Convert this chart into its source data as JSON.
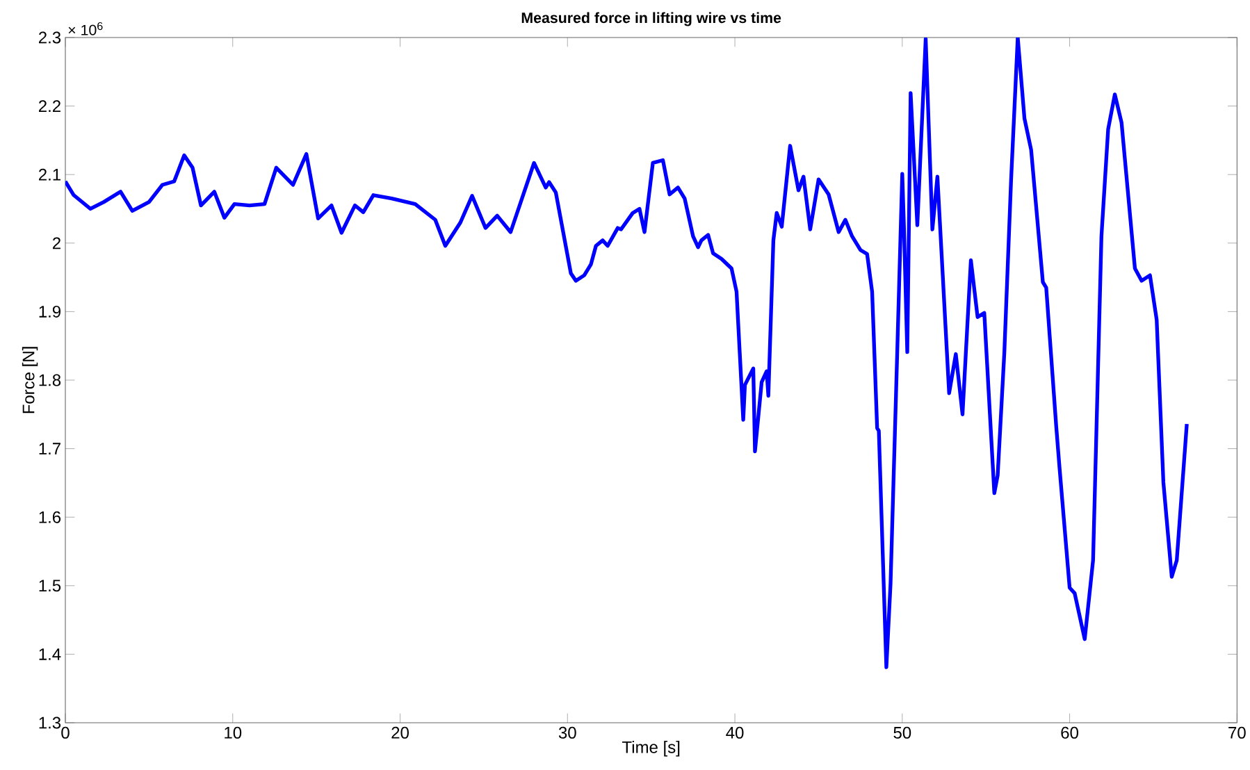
{
  "chart_data": {
    "type": "line",
    "title": "Measured force in lifting wire vs time",
    "xlabel": "Time [s]",
    "ylabel": "Force [N]",
    "annotations": [
      "× 10$^{6}$"
    ],
    "xlim": [
      0,
      70
    ],
    "ylim": [
      1.3,
      2.3
    ],
    "xticks": [
      0,
      10,
      20,
      30,
      40,
      50,
      60,
      70
    ],
    "yticks": [
      1.3,
      1.4,
      1.5,
      1.6,
      1.7,
      1.8,
      1.9,
      2,
      2.1,
      2.2,
      2.3
    ],
    "color": "#0000ff",
    "x": [
      0,
      0.5,
      1.5,
      2.3,
      3.3,
      4.0,
      5.0,
      5.8,
      6.5,
      7.1,
      7.6,
      8.1,
      8.9,
      9.5,
      10.1,
      11.0,
      11.9,
      12.6,
      13.6,
      14.4,
      15.1,
      15.9,
      16.5,
      17.3,
      17.8,
      18.4,
      19.5,
      20.9,
      22.1,
      22.7,
      23.6,
      24.3,
      25.1,
      25.8,
      26.6,
      28.0,
      28.7,
      28.9,
      29.3,
      30.2,
      30.5,
      31.0,
      31.4,
      31.7,
      32.1,
      32.4,
      33.0,
      33.2,
      33.9,
      34.3,
      34.6,
      35.1,
      35.7,
      36.1,
      36.6,
      37.0,
      37.5,
      37.8,
      38.0,
      38.4,
      38.7,
      39.2,
      39.8,
      40.1,
      40.5,
      40.6,
      41.1,
      41.2,
      41.6,
      41.9,
      42.0,
      42.3,
      42.5,
      42.8,
      43.3,
      43.8,
      44.1,
      44.5,
      45.0,
      45.6,
      46.2,
      46.6,
      47.0,
      47.5,
      47.9,
      48.2,
      48.5,
      48.6,
      49.05,
      49.3,
      49.7,
      50.0,
      50.1,
      50.3,
      50.5,
      50.9,
      51.4,
      51.8,
      52.1,
      52.8,
      53.2,
      53.6,
      54.1,
      54.5,
      54.9,
      55.5,
      55.7,
      56.1,
      56.5,
      56.9,
      57.3,
      57.7,
      58.4,
      58.6,
      59.2,
      59.4,
      60.0,
      60.3,
      60.9,
      61.4,
      61.9,
      62.3,
      62.7,
      63.1,
      63.9,
      64.3,
      64.8,
      65.2,
      65.6,
      66.1,
      66.4,
      67.0
    ],
    "values": [
      2.09,
      2.07,
      2.05,
      2.06,
      2.075,
      2.047,
      2.06,
      2.085,
      2.09,
      2.128,
      2.11,
      2.055,
      2.075,
      2.037,
      2.057,
      2.055,
      2.057,
      2.11,
      2.085,
      2.13,
      2.036,
      2.055,
      2.015,
      2.055,
      2.045,
      2.07,
      2.065,
      2.057,
      2.034,
      1.996,
      2.03,
      2.069,
      2.022,
      2.04,
      2.016,
      2.117,
      2.081,
      2.089,
      2.074,
      1.956,
      1.945,
      1.953,
      1.969,
      1.996,
      2.004,
      1.996,
      2.022,
      2.02,
      2.044,
      2.05,
      2.016,
      2.117,
      2.121,
      2.071,
      2.081,
      2.065,
      2.01,
      1.994,
      2.004,
      2.012,
      1.985,
      1.977,
      1.963,
      1.929,
      1.742,
      1.793,
      1.817,
      1.696,
      1.797,
      1.813,
      1.777,
      2.004,
      2.044,
      2.024,
      2.142,
      2.077,
      2.097,
      2.02,
      2.093,
      2.071,
      2.016,
      2.034,
      2.01,
      1.99,
      1.984,
      1.929,
      1.73,
      1.726,
      1.381,
      1.503,
      1.841,
      2.101,
      2.024,
      1.841,
      2.219,
      2.026,
      2.298,
      2.02,
      2.097,
      1.781,
      1.838,
      1.75,
      1.975,
      1.892,
      1.898,
      1.635,
      1.661,
      1.841,
      2.091,
      2.3,
      2.182,
      2.136,
      1.943,
      1.935,
      1.732,
      1.671,
      1.497,
      1.489,
      1.422,
      1.537,
      2.01,
      2.166,
      2.217,
      2.176,
      1.963,
      1.945,
      1.953,
      1.888,
      1.651,
      1.513,
      1.537,
      1.736
    ]
  }
}
